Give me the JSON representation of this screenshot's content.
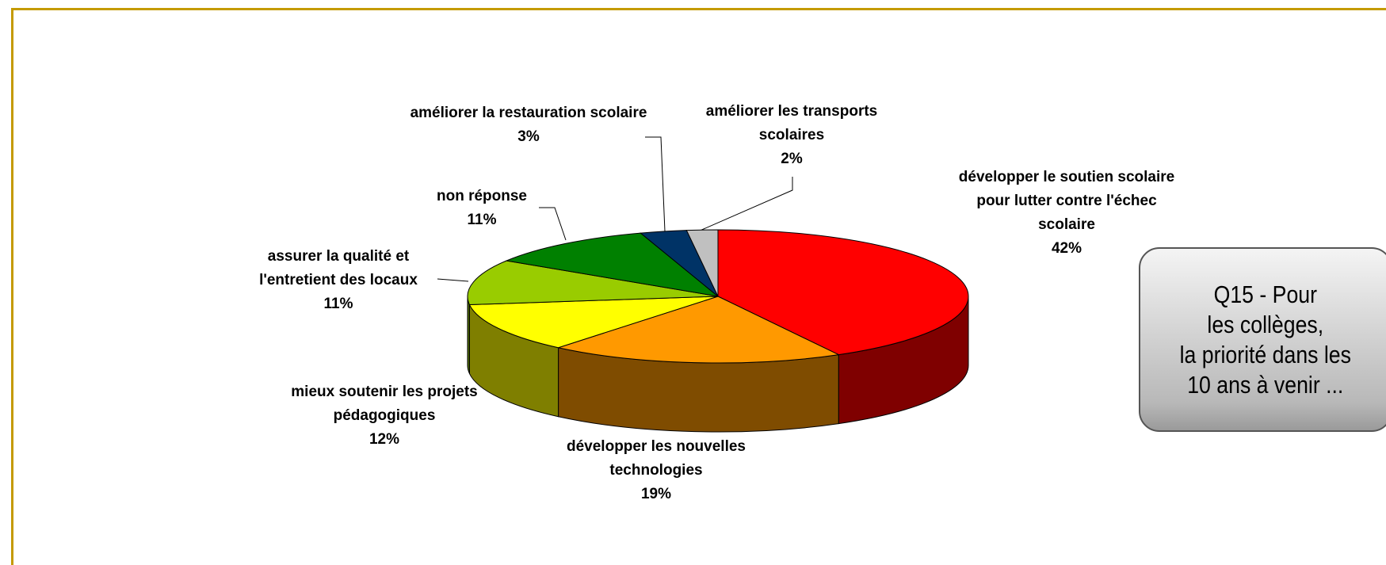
{
  "chart_data": {
    "type": "pie",
    "title": "Q15 - Pour\nles collèges,\nla priorité dans les\n10 ans à venir ...",
    "categories": [
      "développer le soutien scolaire pour lutter contre l'échec scolaire",
      "développer les nouvelles technologies",
      "mieux soutenir les projets pédagogiques",
      "assurer la qualité et l'entretient des locaux",
      "non réponse",
      "améliorer la restauration scolaire",
      "améliorer les transports scolaires"
    ],
    "values": [
      42,
      19,
      12,
      11,
      11,
      3,
      2
    ],
    "value_labels": [
      "42%",
      "19%",
      "12%",
      "11%",
      "11%",
      "3%",
      "2%"
    ],
    "colors": [
      "#ff0000",
      "#ff9900",
      "#ffff00",
      "#99cc00",
      "#008000",
      "#003366",
      "#c0c0c0"
    ]
  }
}
